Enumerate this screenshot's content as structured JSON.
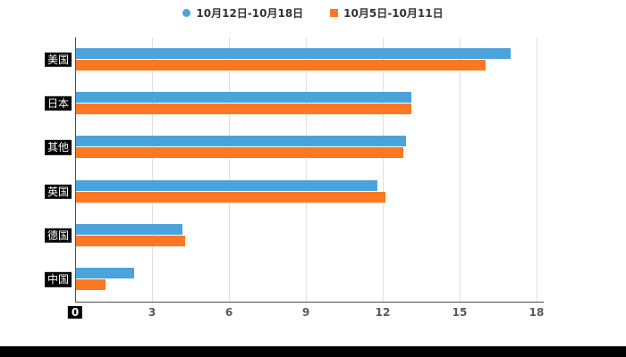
{
  "legend": {
    "items": [
      {
        "label": "10月12日-10月18日",
        "marker": "circle",
        "color": "#4BA3DB"
      },
      {
        "label": "10月5日-10月11日",
        "marker": "square",
        "color": "#FF7721"
      }
    ]
  },
  "chart_data": {
    "type": "bar",
    "orientation": "horizontal",
    "title": "",
    "categories": [
      "美国",
      "日本",
      "其他",
      "英国",
      "德国",
      "中国"
    ],
    "series": [
      {
        "name": "10月12日-10月18日",
        "color": "#4BA3DB",
        "values": [
          17,
          13.1,
          12.9,
          11.8,
          4.2,
          2.3
        ]
      },
      {
        "name": "10月5日-10月11日",
        "color": "#FF7721",
        "values": [
          16,
          13.1,
          12.8,
          12.1,
          4.3,
          1.2
        ]
      }
    ],
    "xlim": [
      0,
      18
    ],
    "xticks": [
      0,
      3,
      6,
      9,
      12,
      15,
      18
    ],
    "grid": true,
    "legend_position": "top",
    "colors": {
      "grid": "#e0e0e0",
      "axis": "#4d4d4d",
      "tick_label": "#595959",
      "category_label_bg": "#000000",
      "category_label_fg": "#ffffff"
    }
  }
}
